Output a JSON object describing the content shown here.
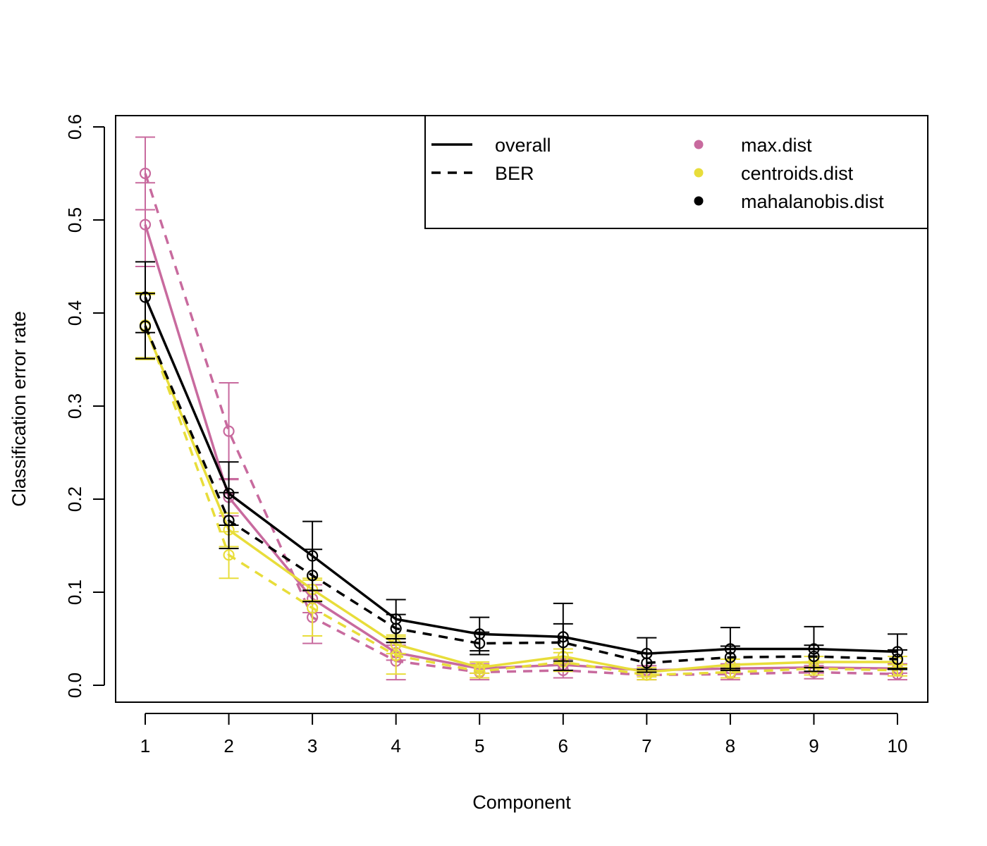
{
  "chart_data": {
    "type": "line",
    "title": "",
    "xlabel": "Component",
    "ylabel": "Classification error rate",
    "x": [
      1,
      2,
      3,
      4,
      5,
      6,
      7,
      8,
      9,
      10
    ],
    "xlim": [
      1,
      10
    ],
    "ylim": [
      0,
      0.6
    ],
    "y_ticks": [
      0.0,
      0.1,
      0.2,
      0.3,
      0.4,
      0.5,
      0.6
    ],
    "y_tick_labels": [
      "0.0",
      "0.1",
      "0.2",
      "0.3",
      "0.4",
      "0.5",
      "0.6"
    ],
    "x_tick_labels": [
      "1",
      "2",
      "3",
      "4",
      "5",
      "6",
      "7",
      "8",
      "9",
      "10"
    ],
    "grid": false,
    "legend_position": "top-right",
    "legend": {
      "line_types": [
        {
          "label": "overall",
          "dash": "solid"
        },
        {
          "label": "BER",
          "dash": "dashed"
        }
      ],
      "distances": [
        {
          "label": "max.dist",
          "color": "#C86A9E"
        },
        {
          "label": "centroids.dist",
          "color": "#E8DD3A"
        },
        {
          "label": "mahalanobis.dist",
          "color": "#000000"
        }
      ]
    },
    "series": [
      {
        "distance": "max.dist",
        "measure": "overall",
        "color": "#C86A9E",
        "dash": "solid",
        "values": [
          0.495,
          0.202,
          0.093,
          0.035,
          0.018,
          0.022,
          0.016,
          0.018,
          0.019,
          0.018
        ],
        "sd": [
          0.045,
          0.02,
          0.015,
          0.008,
          0.005,
          0.006,
          0.005,
          0.005,
          0.005,
          0.005
        ]
      },
      {
        "distance": "max.dist",
        "measure": "BER",
        "color": "#C86A9E",
        "dash": "dashed",
        "values": [
          0.55,
          0.273,
          0.073,
          0.026,
          0.014,
          0.016,
          0.011,
          0.012,
          0.014,
          0.012
        ],
        "sd": [
          0.039,
          0.052,
          0.028,
          0.02,
          0.008,
          0.008,
          0.005,
          0.006,
          0.007,
          0.006
        ]
      },
      {
        "distance": "centroids.dist",
        "measure": "overall",
        "color": "#E8DD3A",
        "dash": "solid",
        "values": [
          0.385,
          0.167,
          0.103,
          0.044,
          0.019,
          0.031,
          0.014,
          0.022,
          0.025,
          0.025
        ],
        "sd": [
          0.035,
          0.018,
          0.012,
          0.01,
          0.006,
          0.008,
          0.005,
          0.006,
          0.006,
          0.006
        ]
      },
      {
        "distance": "centroids.dist",
        "measure": "BER",
        "color": "#E8DD3A",
        "dash": "dashed",
        "values": [
          0.387,
          0.14,
          0.083,
          0.032,
          0.015,
          0.025,
          0.011,
          0.014,
          0.018,
          0.016
        ],
        "sd": [
          0.035,
          0.025,
          0.03,
          0.02,
          0.007,
          0.01,
          0.005,
          0.006,
          0.007,
          0.006
        ]
      },
      {
        "distance": "mahalanobis.dist",
        "measure": "overall",
        "color": "#000000",
        "dash": "solid",
        "values": [
          0.417,
          0.206,
          0.139,
          0.071,
          0.055,
          0.052,
          0.034,
          0.039,
          0.039,
          0.036
        ],
        "sd": [
          0.038,
          0.034,
          0.037,
          0.021,
          0.018,
          0.036,
          0.017,
          0.023,
          0.024,
          0.019
        ]
      },
      {
        "distance": "mahalanobis.dist",
        "measure": "BER",
        "color": "#000000",
        "dash": "dashed",
        "values": [
          0.386,
          0.177,
          0.118,
          0.061,
          0.045,
          0.046,
          0.024,
          0.03,
          0.031,
          0.028
        ],
        "sd": [
          0.035,
          0.03,
          0.028,
          0.015,
          0.012,
          0.02,
          0.01,
          0.012,
          0.012,
          0.01
        ]
      }
    ]
  }
}
